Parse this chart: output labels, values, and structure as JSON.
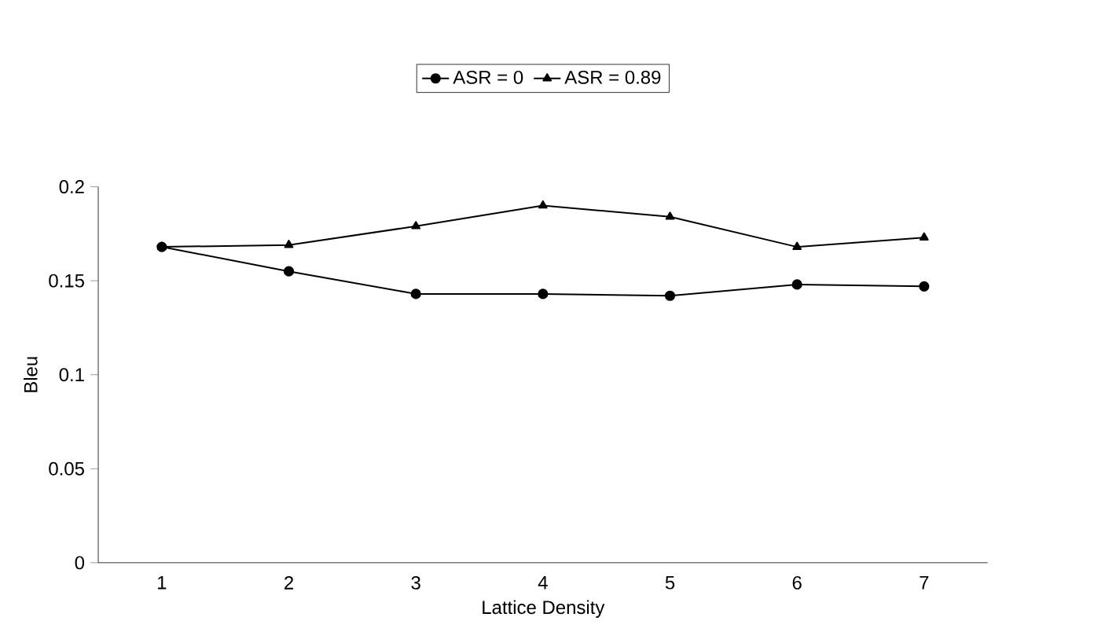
{
  "chart_data": {
    "type": "line",
    "xlabel": "Lattice Density",
    "ylabel": "Bleu",
    "categories": [
      "1",
      "2",
      "3",
      "4",
      "5",
      "6",
      "7"
    ],
    "series": [
      {
        "name": "ASR = 0",
        "color": "#000000",
        "marker": "circle",
        "values": [
          0.168,
          0.155,
          0.143,
          0.143,
          0.142,
          0.148,
          0.147
        ]
      },
      {
        "name": "ASR = 0.89",
        "color": "#000000",
        "marker": "triangle",
        "values": [
          0.168,
          0.169,
          0.179,
          0.19,
          0.184,
          0.168,
          0.173
        ]
      }
    ],
    "ylim": [
      0,
      0.2
    ],
    "yticks": [
      0,
      0.05,
      0.1,
      0.15,
      0.2
    ],
    "legend": "top",
    "grid": false,
    "line_style": "solid"
  }
}
